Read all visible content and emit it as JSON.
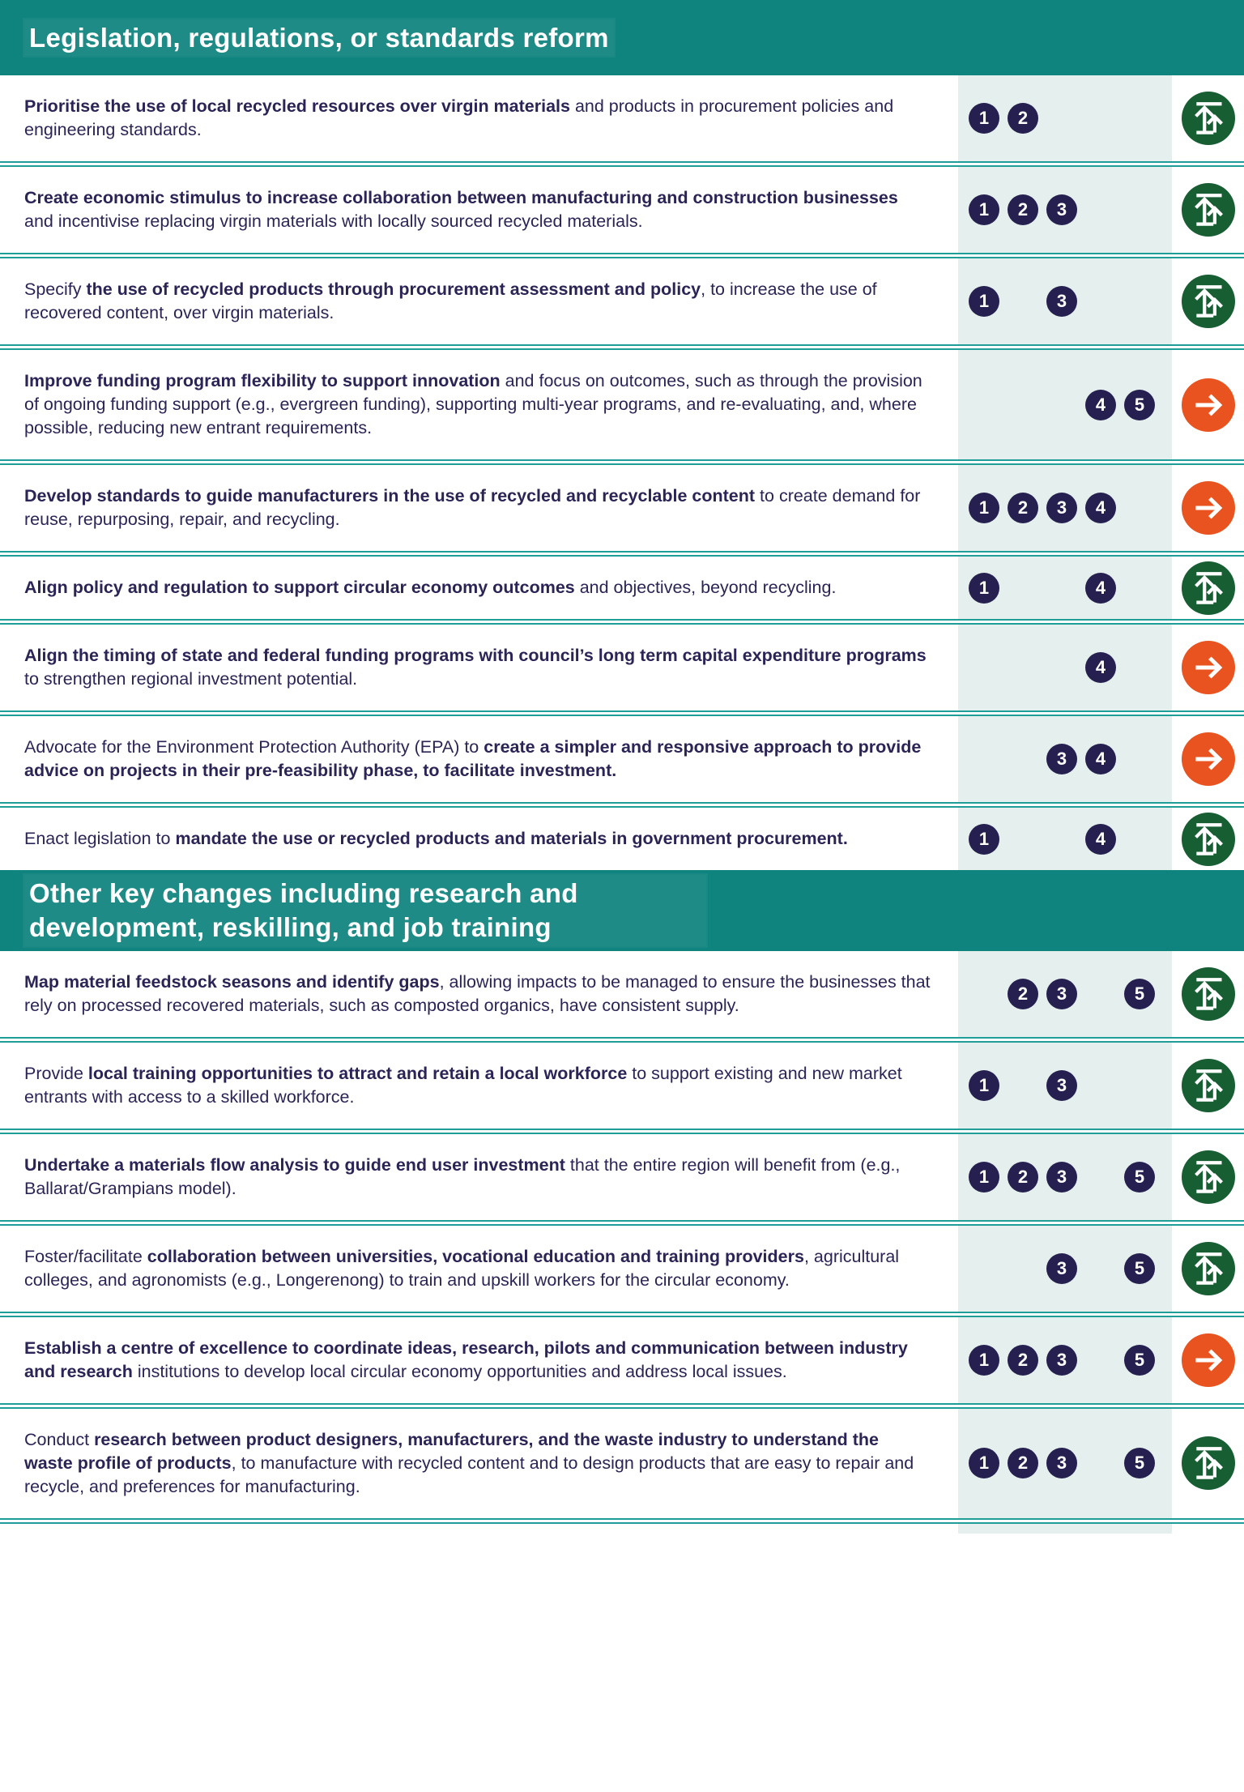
{
  "palette": {
    "header_teal": "#0f837d",
    "divider_teal": "#1f9e97",
    "numbers_column_bg": "#e4efee",
    "number_badge_navy": "#262050",
    "body_text_navy": "#2b2456",
    "scale_up_icon_green": "#175e33",
    "arrow_icon_orange": "#e8531f",
    "white": "#ffffff"
  },
  "icons": {
    "scale-up": "scale-up-icon",
    "arrow-right": "arrow-right-icon"
  },
  "sections": [
    {
      "title": "Legislation, regulations, or standards reform",
      "rows": [
        {
          "segments": [
            {
              "bold": true,
              "text": "Prioritise the use of local recycled resources over virgin materials"
            },
            {
              "bold": false,
              "text": " and products in procurement policies and engineering standards."
            }
          ],
          "numbers": [
            1,
            2
          ],
          "icon": "scale-up"
        },
        {
          "segments": [
            {
              "bold": true,
              "text": "Create economic stimulus to increase collaboration between manufacturing and construction businesses"
            },
            {
              "bold": false,
              "text": " and incentivise replacing virgin materials with locally sourced recycled materials."
            }
          ],
          "numbers": [
            1,
            2,
            3
          ],
          "icon": "scale-up"
        },
        {
          "segments": [
            {
              "bold": false,
              "text": "Specify "
            },
            {
              "bold": true,
              "text": "the use of recycled products through procurement assessment and policy"
            },
            {
              "bold": false,
              "text": ", to increase the use of recovered content, over virgin materials."
            }
          ],
          "numbers": [
            1,
            3
          ],
          "icon": "scale-up"
        },
        {
          "segments": [
            {
              "bold": true,
              "text": "Improve funding program flexibility to support innovation"
            },
            {
              "bold": false,
              "text": " and focus on outcomes, such as through the provision of ongoing funding support (e.g., evergreen funding), supporting multi-year programs, and re-evaluating, and, where possible, reducing new entrant requirements."
            }
          ],
          "numbers": [
            4,
            5
          ],
          "icon": "arrow-right"
        },
        {
          "segments": [
            {
              "bold": true,
              "text": "Develop standards to guide manufacturers in the use of recycled and recyclable content"
            },
            {
              "bold": false,
              "text": " to create demand for reuse, repurposing, repair, and recycling."
            }
          ],
          "numbers": [
            1,
            2,
            3,
            4
          ],
          "icon": "arrow-right"
        },
        {
          "segments": [
            {
              "bold": true,
              "text": "Align policy and regulation to support circular economy outcomes"
            },
            {
              "bold": false,
              "text": " and objectives, beyond recycling."
            }
          ],
          "numbers": [
            1,
            4
          ],
          "icon": "scale-up"
        },
        {
          "segments": [
            {
              "bold": true,
              "text": "Align the timing of state and federal funding programs with council’s long term capital expenditure programs"
            },
            {
              "bold": false,
              "text": " to strengthen regional investment potential."
            }
          ],
          "numbers": [
            4
          ],
          "icon": "arrow-right"
        },
        {
          "segments": [
            {
              "bold": false,
              "text": "Advocate for the Environment Protection Authority (EPA) to "
            },
            {
              "bold": true,
              "text": "create a simpler and responsive approach to provide advice on projects in their pre-feasibility phase, to facilitate investment."
            }
          ],
          "numbers": [
            3,
            4
          ],
          "icon": "arrow-right"
        },
        {
          "segments": [
            {
              "bold": false,
              "text": "Enact legislation to "
            },
            {
              "bold": true,
              "text": "mandate the use or recycled products and materials in government procurement."
            }
          ],
          "numbers": [
            1,
            4
          ],
          "icon": "scale-up"
        }
      ]
    },
    {
      "title": "Other key changes including research and development, reskilling, and job training",
      "rows": [
        {
          "segments": [
            {
              "bold": true,
              "text": "Map material feedstock seasons and identify gaps"
            },
            {
              "bold": false,
              "text": ", allowing impacts to be managed to ensure the businesses that rely on processed recovered materials, such as composted organics, have consistent supply."
            }
          ],
          "numbers": [
            2,
            3,
            5
          ],
          "icon": "scale-up"
        },
        {
          "segments": [
            {
              "bold": false,
              "text": "Provide "
            },
            {
              "bold": true,
              "text": "local training opportunities to attract and retain a local workforce"
            },
            {
              "bold": false,
              "text": " to support existing and new market entrants with access to a skilled workforce."
            }
          ],
          "numbers": [
            1,
            3
          ],
          "icon": "scale-up"
        },
        {
          "segments": [
            {
              "bold": true,
              "text": "Undertake a materials flow analysis to guide end user investment"
            },
            {
              "bold": false,
              "text": " that the entire region will benefit from (e.g., Ballarat/Grampians model)."
            }
          ],
          "numbers": [
            1,
            2,
            3,
            5
          ],
          "icon": "scale-up"
        },
        {
          "segments": [
            {
              "bold": false,
              "text": "Foster/facilitate "
            },
            {
              "bold": true,
              "text": "collaboration between universities, vocational education and training providers"
            },
            {
              "bold": false,
              "text": ", agricultural colleges, and agronomists (e.g., Longerenong) to train and upskill workers for the circular economy."
            }
          ],
          "numbers": [
            3,
            5
          ],
          "icon": "scale-up"
        },
        {
          "segments": [
            {
              "bold": true,
              "text": "Establish a centre of excellence to coordinate ideas, research, pilots and communication between industry and research"
            },
            {
              "bold": false,
              "text": " institutions to develop local circular economy opportunities and address local issues."
            }
          ],
          "numbers": [
            1,
            2,
            3,
            5
          ],
          "icon": "arrow-right"
        },
        {
          "segments": [
            {
              "bold": false,
              "text": "Conduct "
            },
            {
              "bold": true,
              "text": "research between product designers, manufacturers, and the waste industry to understand the waste profile of products"
            },
            {
              "bold": false,
              "text": ", to manufacture with recycled content and to design products that are easy to repair and recycle, and preferences for manufacturing."
            }
          ],
          "numbers": [
            1,
            2,
            3,
            5
          ],
          "icon": "scale-up"
        }
      ]
    }
  ]
}
